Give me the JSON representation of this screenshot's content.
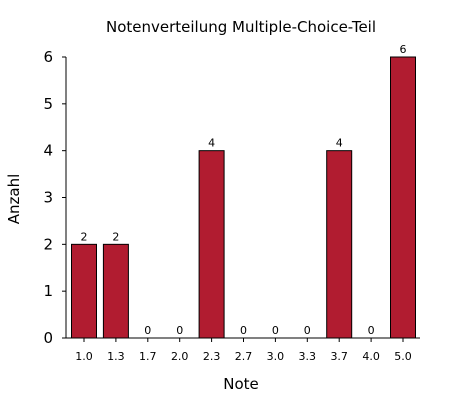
{
  "chart_data": {
    "type": "bar",
    "title": "Notenverteilung Multiple-Choice-Teil",
    "xlabel": "Note",
    "ylabel": "Anzahl",
    "categories": [
      "1.0",
      "1.3",
      "1.7",
      "2.0",
      "2.3",
      "2.7",
      "3.0",
      "3.3",
      "3.7",
      "4.0",
      "5.0"
    ],
    "values": [
      2,
      2,
      0,
      0,
      4,
      0,
      0,
      0,
      4,
      0,
      6
    ],
    "value_labels": [
      "2",
      "2",
      "0",
      "0",
      "4",
      "0",
      "0",
      "0",
      "4",
      "0",
      "6"
    ],
    "ylim": [
      0,
      6
    ],
    "yticks": [
      0,
      1,
      2,
      3,
      4,
      5,
      6
    ],
    "ytick_labels": [
      "0",
      "1",
      "2",
      "3",
      "4",
      "5",
      "6"
    ],
    "grid": false,
    "legend": "none",
    "bar_color": "#b11c30"
  }
}
